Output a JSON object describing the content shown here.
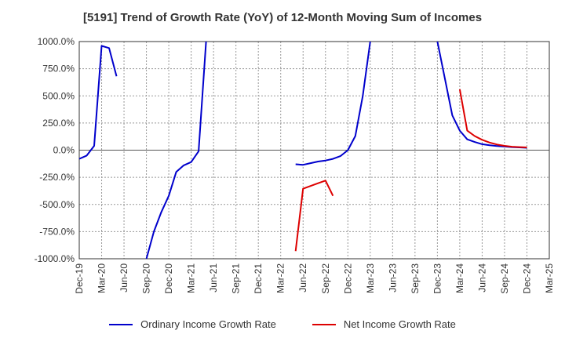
{
  "chart_data": {
    "type": "line",
    "title": "[5191]  Trend of Growth Rate (YoY) of 12-Month Moving Sum of Incomes",
    "xlabel": "",
    "ylabel": "",
    "ylim": [
      -1000,
      1000
    ],
    "y_ticks": [
      1000,
      750,
      500,
      250,
      0,
      -250,
      -500,
      -750,
      -1000
    ],
    "y_tick_labels": [
      "1000.0%",
      "750.0%",
      "500.0%",
      "250.0%",
      "0.0%",
      "-250.0%",
      "-500.0%",
      "-750.0%",
      "-1000.0%"
    ],
    "x_tick_labels": [
      "Dec-19",
      "Mar-20",
      "Jun-20",
      "Sep-20",
      "Dec-20",
      "Mar-21",
      "Jun-21",
      "Sep-21",
      "Dec-21",
      "Mar-22",
      "Jun-22",
      "Sep-22",
      "Dec-22",
      "Mar-23",
      "Jun-23",
      "Sep-23",
      "Dec-23",
      "Mar-24",
      "Jun-24",
      "Sep-24",
      "Dec-24",
      "Mar-25"
    ],
    "grid": true,
    "legend_position": "bottom",
    "series": [
      {
        "name": "Ordinary Income Growth Rate",
        "color": "#0000cc",
        "x": [
          "Dec-19",
          "Jan-20",
          "Feb-20",
          "Mar-20",
          "Apr-20",
          "May-20"
        ],
        "values": [
          -80,
          -50,
          40,
          960,
          940,
          680
        ]
      },
      {
        "name": "Ordinary Income Growth Rate",
        "color": "#0000cc",
        "x": [
          "Sep-20",
          "Oct-20",
          "Nov-20",
          "Dec-20",
          "Jan-21",
          "Feb-21",
          "Mar-21",
          "Apr-21",
          "May-21"
        ],
        "values": [
          -1000,
          -750,
          -570,
          -420,
          -200,
          -140,
          -110,
          -10,
          1000
        ]
      },
      {
        "name": "Ordinary Income Growth Rate",
        "color": "#0000cc",
        "x": [
          "May-22",
          "Jun-22",
          "Jul-22",
          "Aug-22",
          "Sep-22",
          "Oct-22",
          "Nov-22",
          "Dec-22",
          "Jan-23",
          "Feb-23",
          "Mar-23"
        ],
        "values": [
          -130,
          -135,
          -120,
          -105,
          -95,
          -80,
          -55,
          0,
          130,
          500,
          1000
        ]
      },
      {
        "name": "Ordinary Income Growth Rate",
        "color": "#0000cc",
        "x": [
          "Dec-23",
          "Jan-24",
          "Feb-24",
          "Mar-24",
          "Apr-24",
          "May-24",
          "Jun-24",
          "Jul-24",
          "Aug-24",
          "Sep-24",
          "Oct-24",
          "Nov-24",
          "Dec-24"
        ],
        "values": [
          1000,
          660,
          320,
          180,
          100,
          75,
          55,
          45,
          38,
          33,
          28,
          25,
          22
        ]
      },
      {
        "name": "Net Income Growth Rate",
        "color": "#dd0000",
        "x": [
          "May-22",
          "Jun-22",
          "Jul-22",
          "Aug-22",
          "Sep-22",
          "Oct-22"
        ],
        "values": [
          -930,
          -355,
          -330,
          -305,
          -280,
          -420
        ]
      },
      {
        "name": "Net Income Growth Rate",
        "color": "#dd0000",
        "x": [
          "Mar-24",
          "Apr-24",
          "May-24",
          "Jun-24",
          "Jul-24",
          "Aug-24",
          "Sep-24",
          "Oct-24",
          "Nov-24",
          "Dec-24"
        ],
        "values": [
          560,
          180,
          130,
          95,
          70,
          52,
          40,
          32,
          28,
          25
        ]
      }
    ]
  },
  "legend": [
    {
      "label": "Ordinary Income Growth Rate",
      "color": "#0000cc"
    },
    {
      "label": "Net Income Growth Rate",
      "color": "#dd0000"
    }
  ]
}
